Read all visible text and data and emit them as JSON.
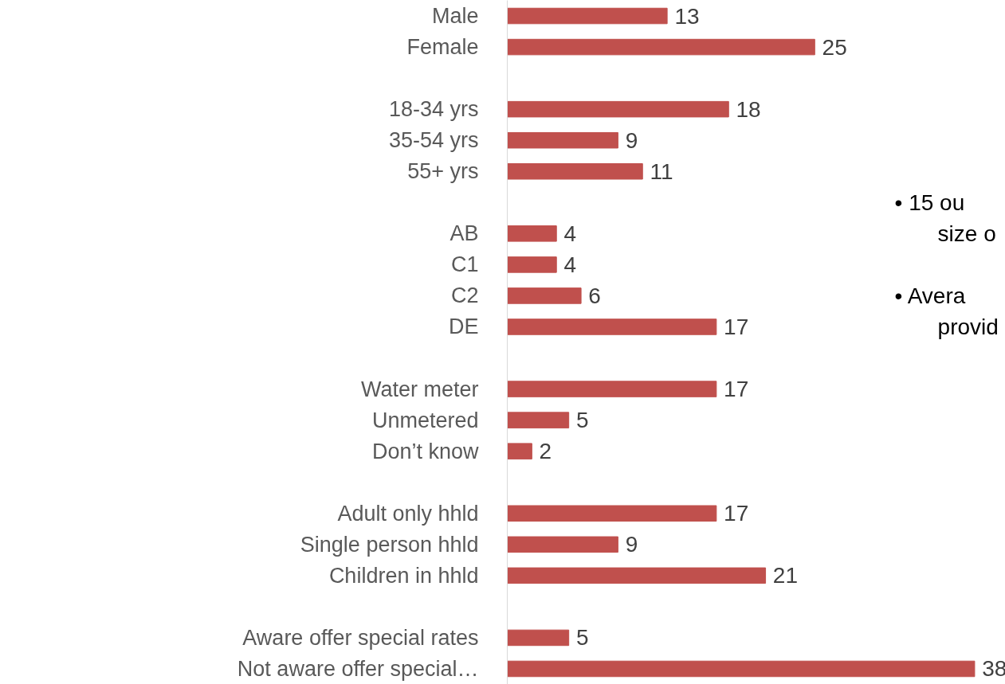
{
  "chart_data": {
    "type": "bar",
    "orientation": "horizontal",
    "categories": [
      "Male",
      "Female",
      null,
      "18-34 yrs",
      "35-54 yrs",
      "55+ yrs",
      null,
      "AB",
      "C1",
      "C2",
      "DE",
      null,
      "Water meter",
      "Unmetered",
      "Don’t know",
      null,
      "Adult only hhld",
      "Single person hhld",
      "Children in hhld",
      null,
      "Aware offer special rates",
      "Not aware offer special…"
    ],
    "values": [
      13,
      25,
      null,
      18,
      9,
      11,
      null,
      4,
      4,
      6,
      17,
      null,
      17,
      5,
      2,
      null,
      17,
      9,
      21,
      null,
      5,
      38
    ],
    "color": "#c0504d",
    "data_labels": true,
    "tick_labels": "y",
    "grid": false,
    "annotations": [
      "• 15 ou",
      "size o",
      "• Avera",
      "provid"
    ]
  }
}
